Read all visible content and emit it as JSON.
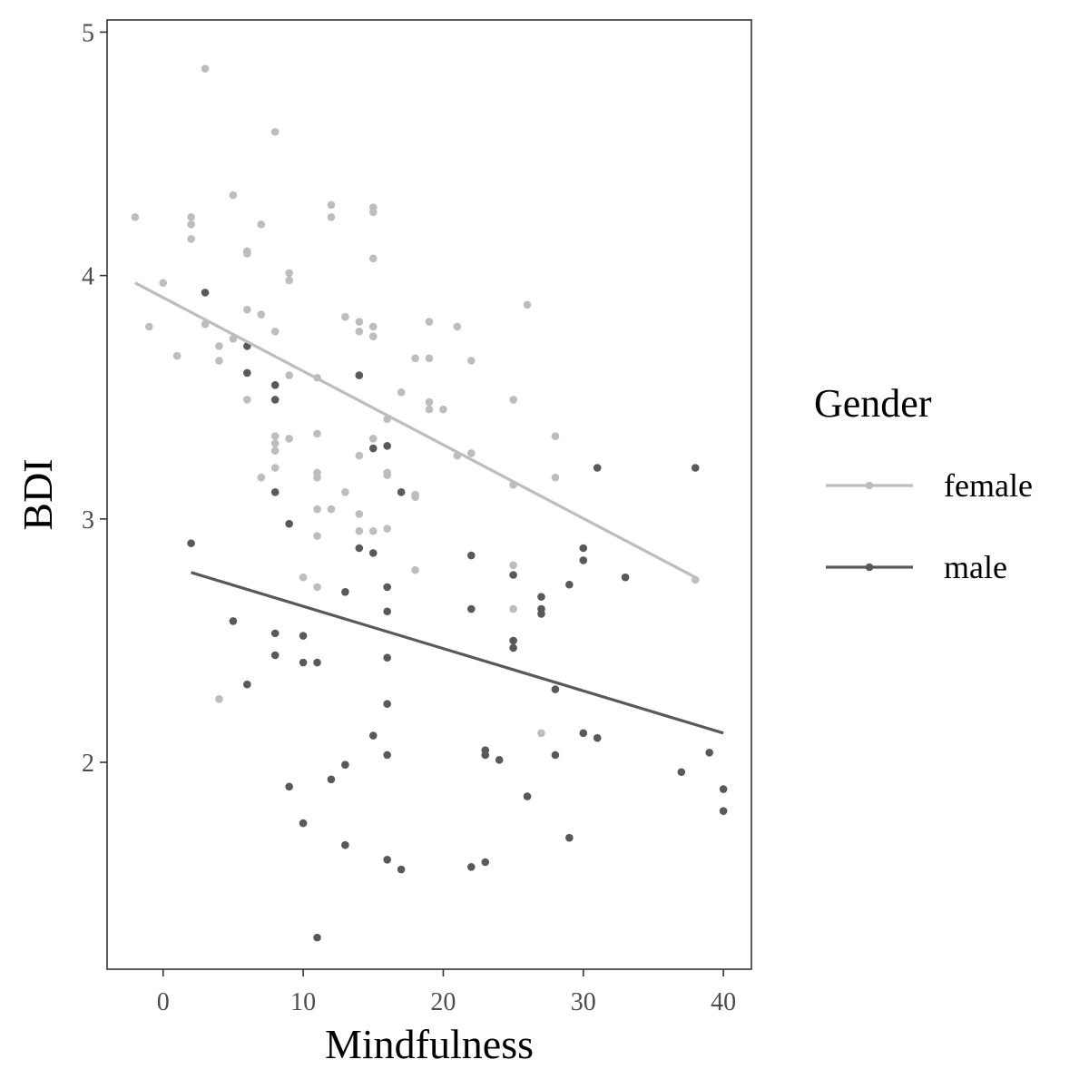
{
  "chart_data": {
    "type": "scatter",
    "xlabel": "Mindfulness",
    "ylabel": "BDI",
    "xlim": [
      -4,
      42
    ],
    "ylim": [
      1.15,
      5.05
    ],
    "x_ticks": [
      0,
      10,
      20,
      30,
      40
    ],
    "y_ticks": [
      2,
      3,
      4,
      5
    ],
    "x_tick_labels": [
      "0",
      "10",
      "20",
      "30",
      "40"
    ],
    "y_tick_labels": [
      "2",
      "3",
      "4",
      "5"
    ],
    "grid": false,
    "legend": {
      "title": "Gender",
      "position": "right",
      "entries": [
        "female",
        "male"
      ]
    },
    "series": [
      {
        "name": "female",
        "color": "#bdbdbd",
        "fit_line": [
          [
            -2,
            3.97
          ],
          [
            38,
            2.76
          ]
        ],
        "points": [
          [
            -2,
            4.24
          ],
          [
            -1,
            3.79
          ],
          [
            0,
            3.97
          ],
          [
            1,
            3.67
          ],
          [
            2,
            4.24
          ],
          [
            2,
            4.21
          ],
          [
            2,
            4.15
          ],
          [
            3,
            4.85
          ],
          [
            3,
            3.8
          ],
          [
            4,
            3.71
          ],
          [
            4,
            3.65
          ],
          [
            4,
            2.26
          ],
          [
            5,
            4.33
          ],
          [
            5,
            3.74
          ],
          [
            6,
            4.1
          ],
          [
            6,
            4.09
          ],
          [
            6,
            3.86
          ],
          [
            6,
            3.49
          ],
          [
            7,
            4.21
          ],
          [
            7,
            3.84
          ],
          [
            7,
            3.17
          ],
          [
            8,
            4.59
          ],
          [
            8,
            3.77
          ],
          [
            8,
            3.34
          ],
          [
            8,
            3.31
          ],
          [
            8,
            3.28
          ],
          [
            8,
            3.21
          ],
          [
            9,
            4.01
          ],
          [
            9,
            3.98
          ],
          [
            9,
            3.59
          ],
          [
            9,
            3.33
          ],
          [
            10,
            2.76
          ],
          [
            11,
            3.58
          ],
          [
            11,
            3.35
          ],
          [
            11,
            3.19
          ],
          [
            11,
            3.17
          ],
          [
            11,
            3.04
          ],
          [
            11,
            2.93
          ],
          [
            11,
            2.72
          ],
          [
            12,
            4.29
          ],
          [
            12,
            4.24
          ],
          [
            12,
            3.04
          ],
          [
            13,
            3.83
          ],
          [
            13,
            3.11
          ],
          [
            14,
            3.81
          ],
          [
            14,
            3.77
          ],
          [
            14,
            3.26
          ],
          [
            14,
            3.02
          ],
          [
            14,
            2.95
          ],
          [
            15,
            4.28
          ],
          [
            15,
            4.26
          ],
          [
            15,
            4.07
          ],
          [
            15,
            3.79
          ],
          [
            15,
            3.75
          ],
          [
            15,
            3.33
          ],
          [
            15,
            2.95
          ],
          [
            16,
            3.41
          ],
          [
            16,
            3.19
          ],
          [
            16,
            3.18
          ],
          [
            16,
            2.96
          ],
          [
            17,
            3.52
          ],
          [
            18,
            3.66
          ],
          [
            18,
            3.1
          ],
          [
            18,
            3.09
          ],
          [
            18,
            2.79
          ],
          [
            19,
            3.81
          ],
          [
            19,
            3.66
          ],
          [
            19,
            3.48
          ],
          [
            19,
            3.45
          ],
          [
            20,
            3.45
          ],
          [
            21,
            3.79
          ],
          [
            21,
            3.26
          ],
          [
            22,
            3.65
          ],
          [
            22,
            3.27
          ],
          [
            25,
            3.49
          ],
          [
            25,
            3.14
          ],
          [
            25,
            2.81
          ],
          [
            25,
            2.63
          ],
          [
            26,
            3.88
          ],
          [
            27,
            2.12
          ],
          [
            28,
            3.34
          ],
          [
            28,
            3.17
          ],
          [
            38,
            2.75
          ]
        ]
      },
      {
        "name": "male",
        "color": "#595959",
        "fit_line": [
          [
            2,
            2.78
          ],
          [
            40,
            2.12
          ]
        ],
        "points": [
          [
            2,
            2.9
          ],
          [
            3,
            3.93
          ],
          [
            5,
            2.58
          ],
          [
            6,
            3.71
          ],
          [
            6,
            3.6
          ],
          [
            6,
            2.32
          ],
          [
            8,
            3.55
          ],
          [
            8,
            3.49
          ],
          [
            8,
            3.11
          ],
          [
            8,
            2.53
          ],
          [
            8,
            2.44
          ],
          [
            9,
            2.98
          ],
          [
            9,
            1.9
          ],
          [
            10,
            2.52
          ],
          [
            10,
            2.41
          ],
          [
            10,
            1.75
          ],
          [
            11,
            2.41
          ],
          [
            11,
            1.28
          ],
          [
            12,
            1.93
          ],
          [
            13,
            2.7
          ],
          [
            13,
            1.99
          ],
          [
            13,
            1.66
          ],
          [
            14,
            3.59
          ],
          [
            14,
            2.88
          ],
          [
            15,
            3.29
          ],
          [
            15,
            2.86
          ],
          [
            15,
            2.11
          ],
          [
            16,
            3.3
          ],
          [
            16,
            2.72
          ],
          [
            16,
            2.62
          ],
          [
            16,
            2.43
          ],
          [
            16,
            2.24
          ],
          [
            16,
            2.03
          ],
          [
            16,
            1.6
          ],
          [
            17,
            3.11
          ],
          [
            17,
            1.56
          ],
          [
            22,
            2.85
          ],
          [
            22,
            2.63
          ],
          [
            22,
            1.57
          ],
          [
            23,
            2.05
          ],
          [
            23,
            2.03
          ],
          [
            23,
            1.59
          ],
          [
            24,
            2.01
          ],
          [
            25,
            2.77
          ],
          [
            25,
            2.5
          ],
          [
            25,
            2.47
          ],
          [
            26,
            1.86
          ],
          [
            27,
            2.68
          ],
          [
            27,
            2.63
          ],
          [
            27,
            2.61
          ],
          [
            28,
            2.3
          ],
          [
            28,
            2.03
          ],
          [
            29,
            2.73
          ],
          [
            29,
            1.69
          ],
          [
            30,
            2.88
          ],
          [
            30,
            2.83
          ],
          [
            30,
            2.12
          ],
          [
            31,
            3.21
          ],
          [
            31,
            2.1
          ],
          [
            33,
            2.76
          ],
          [
            37,
            1.96
          ],
          [
            38,
            3.21
          ],
          [
            39,
            2.04
          ],
          [
            40,
            1.89
          ],
          [
            40,
            1.8
          ]
        ]
      }
    ]
  }
}
